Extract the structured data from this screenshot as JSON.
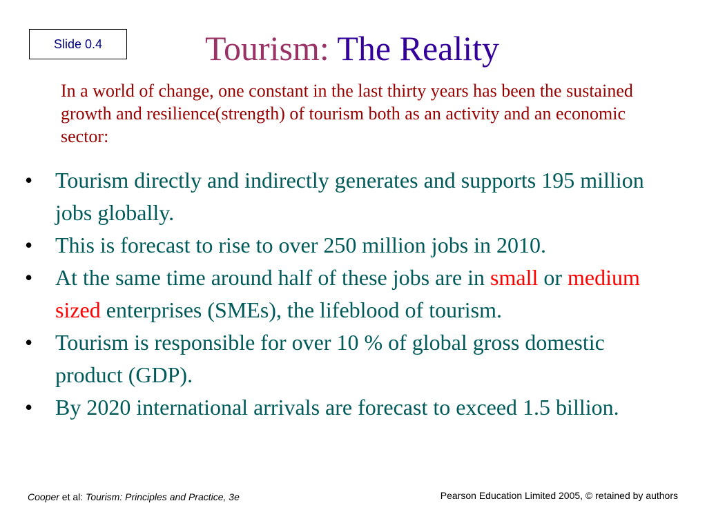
{
  "slide_label": "Slide 0.4",
  "title": [
    {
      "text": "Tourism: ",
      "color": "#993366"
    },
    {
      "text": "The Reality",
      "color": "#330099"
    }
  ],
  "intro": {
    "text": "In a world of change, one constant in the last thirty years has been the sustained growth and resilience(strength) of tourism both as an activity and an economic sector:",
    "color": "#990000"
  },
  "bullets": [
    {
      "runs": [
        {
          "text": "Tourism directly and indirectly generates and supports 195 million jobs globally.",
          "color": "#005a5a"
        }
      ]
    },
    {
      "runs": [
        {
          "text": "This is forecast to rise to over 250 million jobs in 2010.",
          "color": "#005a5a"
        }
      ]
    },
    {
      "runs": [
        {
          "text": "At the same time around half of these jobs are in ",
          "color": "#005a5a"
        },
        {
          "text": "small",
          "color": "#ff0000"
        },
        {
          "text": " or ",
          "color": "#005a5a"
        },
        {
          "text": "medium sized",
          "color": "#ff0000"
        },
        {
          "text": " enterprises (SMEs), the lifeblood of tourism.",
          "color": "#005a5a"
        }
      ]
    },
    {
      "runs": [
        {
          "text": "Tourism is responsible for over 10 % of global gross domestic product (GDP).",
          "color": "#005a5a"
        }
      ]
    },
    {
      "runs": [
        {
          "text": "By 2020 international arrivals are forecast to exceed 1.5 billion.",
          "color": "#005a5a"
        }
      ]
    }
  ],
  "footer": {
    "left": [
      {
        "text": "Cooper",
        "italic": true
      },
      {
        "text": " et al: ",
        "italic": false
      },
      {
        "text": "Tourism: Principles and Practice, 3e",
        "italic": true
      }
    ],
    "right": "Pearson Education Limited 2005, © retained by authors"
  }
}
